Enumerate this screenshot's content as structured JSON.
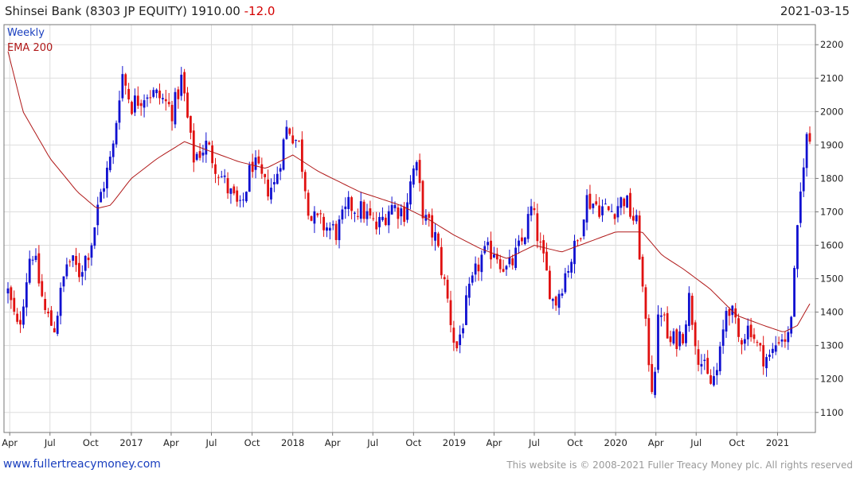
{
  "header": {
    "name": "Shinsei Bank (8303 JP EQUITY)",
    "price": "1910.00",
    "change": "-12.0",
    "date": "2021-03-15"
  },
  "footer": {
    "left": "www.fullertreacymoney.com",
    "right": "This website is © 2008-2021 Fuller Treacy Money plc. All rights reserved"
  },
  "colors": {
    "up": "#1010d0",
    "down": "#e01010",
    "ema": "#b01818",
    "grid": "#dddddd"
  },
  "chart_data": {
    "type": "candlestick",
    "frequency_label": "Weekly",
    "legend": [
      {
        "name": "Weekly",
        "color": "#1a3fbf"
      },
      {
        "name": "EMA 200",
        "color": "#b01818"
      }
    ],
    "legend_placement": "top-left",
    "grid": true,
    "ylim": [
      1040,
      2260
    ],
    "y_ticks": [
      1100,
      1200,
      1300,
      1400,
      1500,
      1600,
      1700,
      1800,
      1900,
      2000,
      2100,
      2200
    ],
    "x_start": "2016-03-28",
    "x_end": "2021-03-15",
    "x_ticks": [
      {
        "label": "Apr",
        "date": "2016-04-01"
      },
      {
        "label": "Jul",
        "date": "2016-07-01"
      },
      {
        "label": "Oct",
        "date": "2016-10-01"
      },
      {
        "label": "2017",
        "date": "2017-01-01"
      },
      {
        "label": "Apr",
        "date": "2017-04-01"
      },
      {
        "label": "Jul",
        "date": "2017-07-01"
      },
      {
        "label": "Oct",
        "date": "2017-10-01"
      },
      {
        "label": "2018",
        "date": "2018-01-01"
      },
      {
        "label": "Apr",
        "date": "2018-04-01"
      },
      {
        "label": "Jul",
        "date": "2018-07-01"
      },
      {
        "label": "Oct",
        "date": "2018-10-01"
      },
      {
        "label": "2019",
        "date": "2019-01-01"
      },
      {
        "label": "Apr",
        "date": "2019-04-01"
      },
      {
        "label": "Jul",
        "date": "2019-07-01"
      },
      {
        "label": "Oct",
        "date": "2019-10-01"
      },
      {
        "label": "2020",
        "date": "2020-01-01"
      },
      {
        "label": "Apr",
        "date": "2020-04-01"
      },
      {
        "label": "Jul",
        "date": "2020-07-01"
      },
      {
        "label": "Oct",
        "date": "2020-10-01"
      },
      {
        "label": "2021",
        "date": "2021-01-01"
      }
    ],
    "close_anchors": [
      [
        "2016-03-28",
        1460
      ],
      [
        "2016-04-20",
        1340
      ],
      [
        "2016-05-20",
        1600
      ],
      [
        "2016-06-20",
        1400
      ],
      [
        "2016-07-10",
        1350
      ],
      [
        "2016-08-10",
        1560
      ],
      [
        "2016-09-05",
        1520
      ],
      [
        "2016-10-01",
        1600
      ],
      [
        "2016-10-25",
        1760
      ],
      [
        "2016-11-20",
        1880
      ],
      [
        "2016-12-10",
        2120
      ],
      [
        "2017-01-01",
        2020
      ],
      [
        "2017-02-05",
        2060
      ],
      [
        "2017-03-10",
        2040
      ],
      [
        "2017-04-05",
        2000
      ],
      [
        "2017-04-25",
        2100
      ],
      [
        "2017-05-20",
        1860
      ],
      [
        "2017-06-20",
        1900
      ],
      [
        "2017-07-15",
        1830
      ],
      [
        "2017-08-10",
        1760
      ],
      [
        "2017-09-05",
        1700
      ],
      [
        "2017-10-01",
        1850
      ],
      [
        "2017-11-01",
        1770
      ],
      [
        "2017-11-20",
        1780
      ],
      [
        "2017-12-20",
        1960
      ],
      [
        "2018-01-15",
        1900
      ],
      [
        "2018-02-10",
        1680
      ],
      [
        "2018-03-10",
        1660
      ],
      [
        "2018-04-10",
        1640
      ],
      [
        "2018-05-10",
        1720
      ],
      [
        "2018-06-10",
        1700
      ],
      [
        "2018-07-10",
        1650
      ],
      [
        "2018-08-10",
        1720
      ],
      [
        "2018-09-10",
        1700
      ],
      [
        "2018-10-05",
        1850
      ],
      [
        "2018-10-25",
        1680
      ],
      [
        "2018-11-20",
        1620
      ],
      [
        "2018-12-15",
        1450
      ],
      [
        "2019-01-05",
        1280
      ],
      [
        "2019-02-01",
        1440
      ],
      [
        "2019-03-01",
        1560
      ],
      [
        "2019-04-01",
        1590
      ],
      [
        "2019-05-01",
        1520
      ],
      [
        "2019-06-01",
        1600
      ],
      [
        "2019-06-25",
        1710
      ],
      [
        "2019-07-20",
        1560
      ],
      [
        "2019-08-15",
        1420
      ],
      [
        "2019-09-10",
        1520
      ],
      [
        "2019-10-10",
        1620
      ],
      [
        "2019-10-25",
        1740
      ],
      [
        "2019-11-20",
        1720
      ],
      [
        "2019-12-20",
        1700
      ],
      [
        "2020-01-20",
        1740
      ],
      [
        "2020-02-20",
        1650
      ],
      [
        "2020-03-10",
        1330
      ],
      [
        "2020-03-25",
        1160
      ],
      [
        "2020-04-10",
        1430
      ],
      [
        "2020-05-01",
        1300
      ],
      [
        "2020-06-01",
        1340
      ],
      [
        "2020-06-15",
        1440
      ],
      [
        "2020-07-05",
        1280
      ],
      [
        "2020-08-01",
        1180
      ],
      [
        "2020-08-20",
        1230
      ],
      [
        "2020-09-10",
        1440
      ],
      [
        "2020-10-05",
        1320
      ],
      [
        "2020-11-01",
        1360
      ],
      [
        "2020-11-20",
        1280
      ],
      [
        "2020-12-15",
        1260
      ],
      [
        "2021-01-05",
        1330
      ],
      [
        "2021-01-25",
        1320
      ],
      [
        "2021-02-05",
        1450
      ],
      [
        "2021-02-20",
        1720
      ],
      [
        "2021-03-05",
        1922
      ],
      [
        "2021-03-15",
        1910
      ]
    ],
    "ema200_anchors": [
      [
        "2016-03-28",
        2180
      ],
      [
        "2016-05-01",
        2000
      ],
      [
        "2016-07-01",
        1860
      ],
      [
        "2016-09-01",
        1760
      ],
      [
        "2016-10-15",
        1710
      ],
      [
        "2016-11-15",
        1720
      ],
      [
        "2017-01-01",
        1800
      ],
      [
        "2017-03-01",
        1860
      ],
      [
        "2017-05-01",
        1910
      ],
      [
        "2017-07-01",
        1880
      ],
      [
        "2017-09-01",
        1850
      ],
      [
        "2017-11-01",
        1830
      ],
      [
        "2018-01-01",
        1870
      ],
      [
        "2018-03-01",
        1820
      ],
      [
        "2018-06-01",
        1760
      ],
      [
        "2018-09-01",
        1720
      ],
      [
        "2018-11-01",
        1680
      ],
      [
        "2019-01-01",
        1630
      ],
      [
        "2019-03-01",
        1590
      ],
      [
        "2019-05-01",
        1560
      ],
      [
        "2019-07-01",
        1600
      ],
      [
        "2019-09-01",
        1580
      ],
      [
        "2019-11-01",
        1610
      ],
      [
        "2020-01-01",
        1640
      ],
      [
        "2020-03-01",
        1640
      ],
      [
        "2020-04-15",
        1570
      ],
      [
        "2020-06-01",
        1530
      ],
      [
        "2020-08-01",
        1470
      ],
      [
        "2020-10-01",
        1390
      ],
      [
        "2020-12-01",
        1360
      ],
      [
        "2021-01-15",
        1340
      ],
      [
        "2021-02-15",
        1360
      ],
      [
        "2021-03-15",
        1425
      ]
    ]
  }
}
